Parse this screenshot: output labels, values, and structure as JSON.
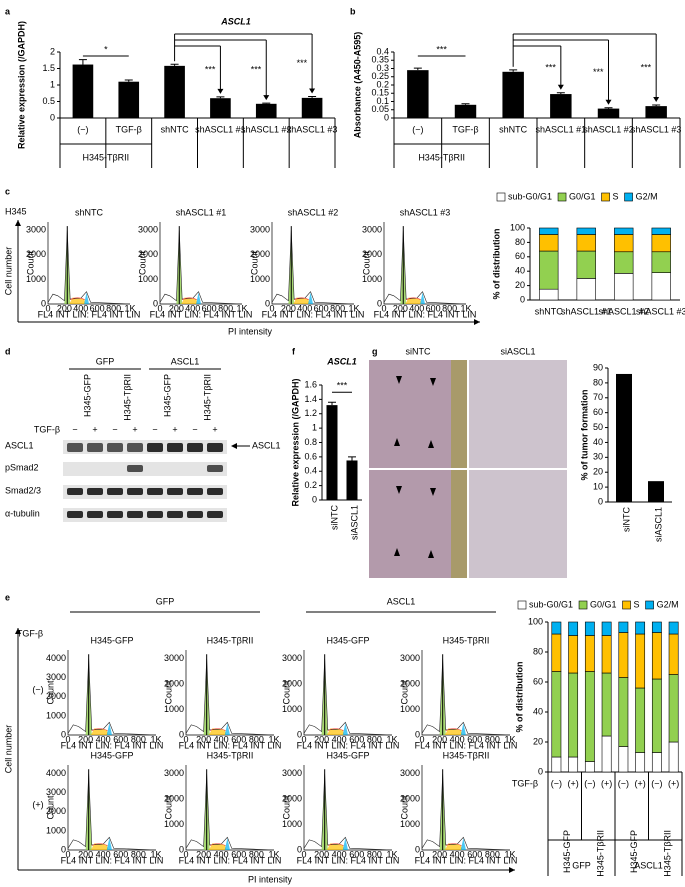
{
  "panel_labels": [
    "a",
    "b",
    "c",
    "d",
    "e",
    "f",
    "g"
  ],
  "chart_data": [
    {
      "type": "bar",
      "title": "ASCL1",
      "ylabel": "Relative expression (/GAPDH)",
      "categories": [
        "(−)",
        "TGF-β",
        "shNTC",
        "shASCL1 #1",
        "shASCL1 #2",
        "shASCL1 #3"
      ],
      "groups": [
        "H345-TβRII"
      ],
      "values": [
        1.62,
        1.1,
        1.58,
        0.6,
        0.43,
        0.61
      ],
      "errors": [
        0.15,
        0.05,
        0.05,
        0.04,
        0.02,
        0.04
      ],
      "color": "#000000",
      "ylim": [
        0,
        2
      ],
      "yticks": [
        0,
        0.5,
        1,
        1.5,
        2
      ],
      "annotations": [
        "*",
        "***",
        "***",
        "***"
      ]
    },
    {
      "type": "bar",
      "ylabel": "Absorbance (A450-A595)",
      "categories": [
        "(−)",
        "TGF-β",
        "shNTC",
        "shASCL1 #1",
        "shASCL1 #2",
        "shASCL1 #3"
      ],
      "groups": [
        "H345-TβRII"
      ],
      "values": [
        0.29,
        0.08,
        0.28,
        0.145,
        0.057,
        0.072
      ],
      "errors": [
        0.012,
        0.006,
        0.012,
        0.008,
        0.005,
        0.007
      ],
      "color": "#000000",
      "ylim": [
        0,
        0.4
      ],
      "yticks": [
        0,
        0.05,
        0.1,
        0.15,
        0.2,
        0.25,
        0.3,
        0.35,
        0.4
      ],
      "annotations": [
        "***",
        "***",
        "***",
        "***"
      ]
    },
    {
      "type": "stacked_bar",
      "ylabel": "% of distribution",
      "categories": [
        "shNTC",
        "shASCL1 #1",
        "shASCL1 #2",
        "shASCL1 #3"
      ],
      "series": [
        {
          "name": "sub-G0/G1",
          "color": "#ffffff",
          "values": [
            15,
            30,
            37,
            38
          ]
        },
        {
          "name": "G0/G1",
          "color": "#92d050",
          "values": [
            53,
            38,
            30,
            29
          ]
        },
        {
          "name": "S",
          "color": "#ffc000",
          "values": [
            23,
            23,
            24,
            24
          ]
        },
        {
          "name": "G2/M",
          "color": "#00b0f0",
          "values": [
            9,
            9,
            9,
            9
          ]
        }
      ],
      "ylim": [
        0,
        100
      ],
      "yticks": [
        0,
        20,
        40,
        60,
        80,
        100
      ]
    },
    {
      "type": "bar",
      "title": "ASCL1",
      "ylabel": "Relative expression (/GAPDH)",
      "categories": [
        "siNTC",
        "siASCL1"
      ],
      "values": [
        1.32,
        0.55
      ],
      "errors": [
        0.04,
        0.05
      ],
      "color": "#000000",
      "ylim": [
        0,
        1.6
      ],
      "yticks": [
        0,
        0.2,
        0.4,
        0.6,
        0.8,
        1,
        1.2,
        1.4,
        1.6
      ],
      "annotations": [
        "***"
      ]
    },
    {
      "type": "bar",
      "ylabel": "% of tumor formation",
      "categories": [
        "siNTC",
        "siASCL1"
      ],
      "values": [
        86,
        14
      ],
      "color": "#000000",
      "ylim": [
        0,
        90
      ],
      "yticks": [
        0,
        10,
        20,
        30,
        40,
        50,
        60,
        70,
        80,
        90
      ]
    },
    {
      "type": "stacked_bar",
      "ylabel": "% of distribution",
      "categories": [
        "(−)",
        "(+)",
        "(−)",
        "(+)",
        "(−)",
        "(+)",
        "(−)",
        "(+)"
      ],
      "category_header": "TGF-β",
      "subgroups": [
        "H345-GFP",
        "H345-TβRII",
        "H345-GFP",
        "H345-TβRII"
      ],
      "groups": [
        "GFP",
        "ASCL1"
      ],
      "series": [
        {
          "name": "sub-G0/G1",
          "color": "#ffffff",
          "values": [
            10,
            10,
            7,
            24,
            17,
            13,
            13,
            20
          ]
        },
        {
          "name": "G0/G1",
          "color": "#92d050",
          "values": [
            57,
            56,
            60,
            42,
            46,
            43,
            49,
            45
          ]
        },
        {
          "name": "S",
          "color": "#ffc000",
          "values": [
            25,
            25,
            24,
            25,
            30,
            36,
            31,
            27
          ]
        },
        {
          "name": "G2/M",
          "color": "#00b0f0",
          "values": [
            8,
            9,
            9,
            9,
            7,
            8,
            7,
            8
          ]
        }
      ],
      "ylim": [
        0,
        100
      ],
      "yticks": [
        0,
        20,
        40,
        60,
        80,
        100
      ]
    }
  ],
  "histogram_axis": {
    "xticks": [
      "0",
      "200",
      "400",
      "600",
      "800",
      "1K"
    ],
    "yticks": [
      "0",
      "1000",
      "2000",
      "3000",
      "4000"
    ],
    "xlabel": "FL4 INT LIN: FL4 INT LIN",
    "ylabel": "Count"
  },
  "flow_c": {
    "cell_line": "H345",
    "titles": [
      "shNTC",
      "shASCL1 #1",
      "shASCL1 #2",
      "shASCL1 #3"
    ],
    "ylabel": "Cell number",
    "xlabel": "PI intensity"
  },
  "flow_e": {
    "groups": [
      "GFP",
      "ASCL1"
    ],
    "titles": [
      "H345-GFP",
      "H345-TβRII",
      "H345-GFP",
      "H345-TβRII"
    ],
    "row_header": "TGF-β",
    "rows": [
      "(−)",
      "(+)"
    ],
    "ylabel": "Cell number",
    "xlabel": "PI intensity"
  },
  "blot": {
    "groups": [
      "GFP",
      "ASCL1"
    ],
    "lanes": [
      "H345-GFP",
      "H345-TβRII",
      "H345-GFP",
      "H345-TβRII"
    ],
    "treatment": "TGF-β",
    "signs": [
      "−",
      "+"
    ],
    "proteins": [
      "ASCL1",
      "pSmad2",
      "Smad2/3",
      "α-tubulin"
    ],
    "arrow_label": "ASCL1"
  },
  "photos": {
    "labels": [
      "siNTC",
      "siASCL1"
    ]
  }
}
